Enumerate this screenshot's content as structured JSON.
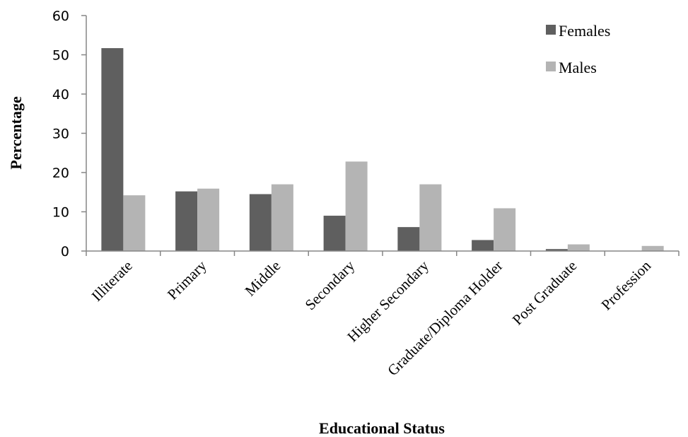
{
  "chart_data": {
    "type": "bar",
    "xlabel": "Educational Status",
    "ylabel": "Percentage",
    "ylim": [
      0,
      60
    ],
    "yticks": [
      0,
      10,
      20,
      30,
      40,
      50,
      60
    ],
    "grid": false,
    "legend_position": "top-right",
    "categories": [
      "Illiterate",
      "Primary",
      "Middle",
      "Secondary",
      "Higher Secondary",
      "Graduate/Diploma Holder",
      "Post Graduate",
      "Profession"
    ],
    "series": [
      {
        "name": "Females",
        "color": "#5f5f5f",
        "values": [
          51.7,
          15.2,
          14.5,
          9.0,
          6.1,
          2.8,
          0.5,
          0.0
        ]
      },
      {
        "name": "Males",
        "color": "#b4b4b4",
        "values": [
          14.2,
          15.9,
          17.0,
          22.8,
          17.0,
          10.9,
          1.7,
          1.3
        ]
      }
    ]
  }
}
